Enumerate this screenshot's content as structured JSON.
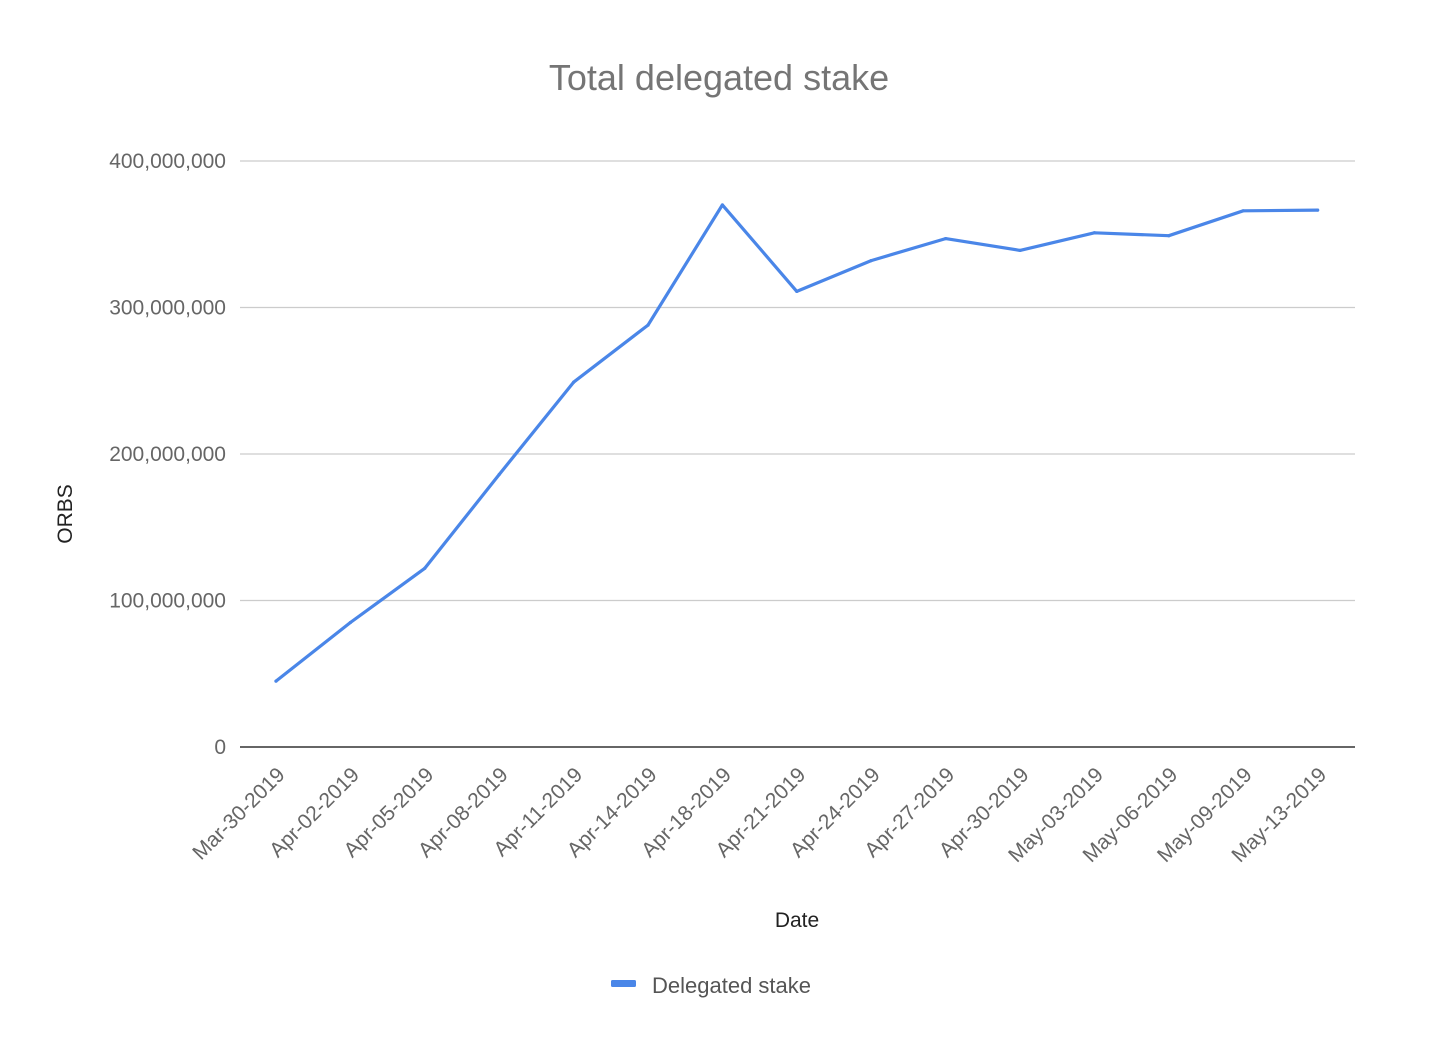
{
  "chart_data": {
    "type": "line",
    "title": "Total delegated stake",
    "xlabel": "Date",
    "ylabel": "ORBS",
    "ylim": [
      0,
      400000000
    ],
    "y_ticks": [
      {
        "value": 0,
        "label": "0"
      },
      {
        "value": 100000000,
        "label": "100,000,000"
      },
      {
        "value": 200000000,
        "label": "200,000,000"
      },
      {
        "value": 300000000,
        "label": "300,000,000"
      },
      {
        "value": 400000000,
        "label": "400,000,000"
      }
    ],
    "categories": [
      "Mar-30-2019",
      "Apr-02-2019",
      "Apr-05-2019",
      "Apr-08-2019",
      "Apr-11-2019",
      "Apr-14-2019",
      "Apr-18-2019",
      "Apr-21-2019",
      "Apr-24-2019",
      "Apr-27-2019",
      "Apr-30-2019",
      "May-03-2019",
      "May-06-2019",
      "May-09-2019",
      "May-13-2019"
    ],
    "series": [
      {
        "name": "Delegated stake",
        "color": "#4a86e8",
        "values": [
          45000000,
          85000000,
          122000000,
          186000000,
          249000000,
          288000000,
          370000000,
          311000000,
          332000000,
          347000000,
          339000000,
          351000000,
          349000000,
          366000000,
          366500000
        ]
      }
    ],
    "grid": true,
    "legend": "bottom"
  }
}
